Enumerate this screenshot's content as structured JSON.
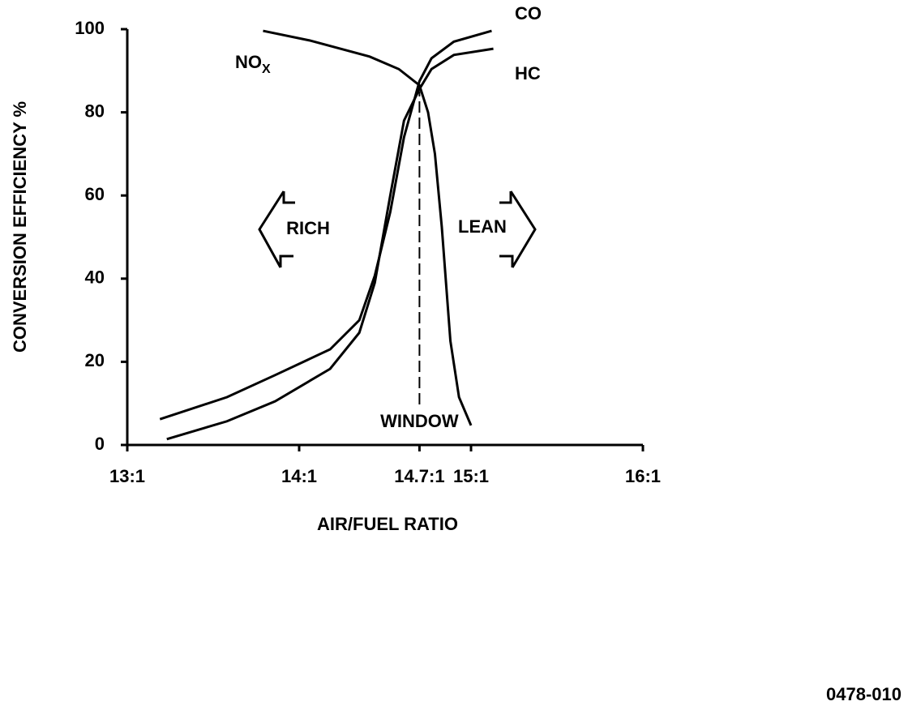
{
  "chart_data": {
    "type": "line",
    "xlabel": "AIR/FUEL RATIO",
    "ylabel": "CONVERSION EFFICIENCY %",
    "xlim": [
      13,
      16
    ],
    "ylim": [
      0,
      100
    ],
    "xticks": [
      {
        "value": 13,
        "label": "13:1"
      },
      {
        "value": 14,
        "label": "14:1"
      },
      {
        "value": 14.7,
        "label": "14.7:1"
      },
      {
        "value": 15,
        "label": "15:1"
      },
      {
        "value": 16,
        "label": "16:1"
      }
    ],
    "yticks": [
      0,
      20,
      40,
      60,
      80,
      100
    ],
    "series": [
      {
        "name": "CO",
        "color": "#000000",
        "x": [
          13.19,
          13.58,
          13.86,
          14.18,
          14.35,
          14.44,
          14.53,
          14.61,
          14.7,
          14.77,
          14.9,
          15.12
        ],
        "values": [
          6.2,
          11.5,
          16.8,
          23,
          30,
          40.7,
          56,
          74,
          87.5,
          93,
          97,
          99.6
        ]
      },
      {
        "name": "HC",
        "color": "#000000",
        "x": [
          13.23,
          13.58,
          13.86,
          14.18,
          14.35,
          14.44,
          14.53,
          14.61,
          14.7,
          14.77,
          14.9,
          15.13
        ],
        "values": [
          1.4,
          5.7,
          10.5,
          18.3,
          27,
          39,
          60,
          78,
          85.6,
          90.4,
          93.8,
          95.3
        ]
      },
      {
        "name": "NO",
        "name_subscript": "X",
        "color": "#000000",
        "x": [
          13.79,
          14.06,
          14.41,
          14.58,
          14.7,
          14.75,
          14.79,
          14.83,
          14.88,
          14.93,
          15
        ],
        "values": [
          99.6,
          97.3,
          93.4,
          90.4,
          86.5,
          80,
          70,
          52.4,
          25,
          11.5,
          4.7
        ]
      }
    ],
    "annotations": {
      "window": {
        "text": "WINDOW",
        "x": 14.7,
        "y": 85
      },
      "rich": "RICH",
      "lean": "LEAN"
    }
  },
  "figure_id": "0478-010"
}
